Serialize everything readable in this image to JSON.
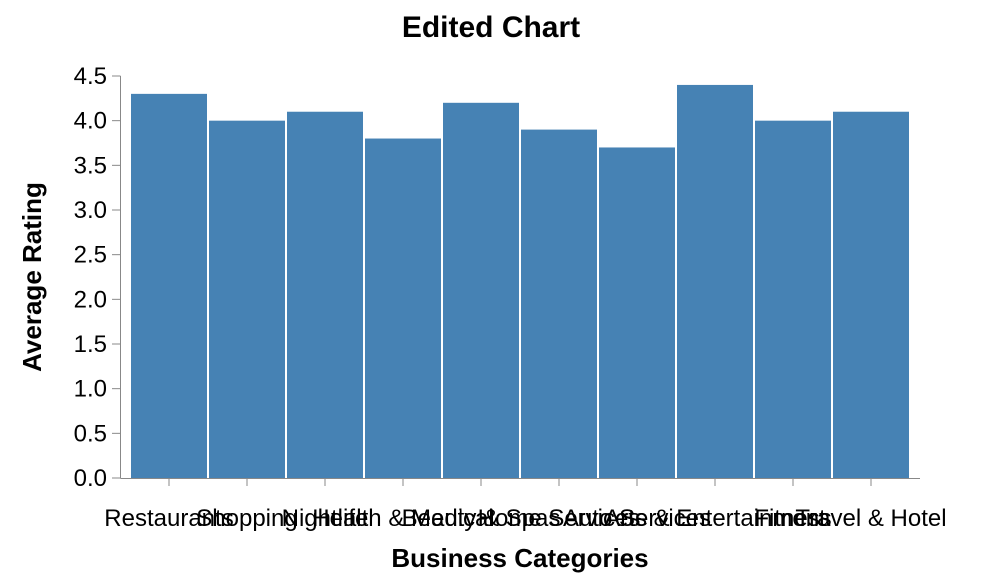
{
  "chart_data": {
    "type": "bar",
    "title": "Edited Chart",
    "xlabel": "Business Categories",
    "ylabel": "Average Rating",
    "categories": [
      "Restaurants",
      "Shopping",
      "Nightlife",
      "Health & Medical",
      "Beauty & Spas",
      "Home Services",
      "Auto Services",
      "Arts & Entertainment",
      "Fitness",
      "Travel & Hotel"
    ],
    "values": [
      4.3,
      4.0,
      4.1,
      3.8,
      4.2,
      3.9,
      3.7,
      4.4,
      4.0,
      4.1
    ],
    "ylim": [
      0,
      4.5
    ],
    "yticks": [
      "0.0",
      "0.5",
      "1.0",
      "1.5",
      "2.0",
      "2.5",
      "3.0",
      "3.5",
      "4.0",
      "4.5"
    ],
    "grid": false,
    "legend": "none",
    "bar_color": "#4682b4"
  }
}
